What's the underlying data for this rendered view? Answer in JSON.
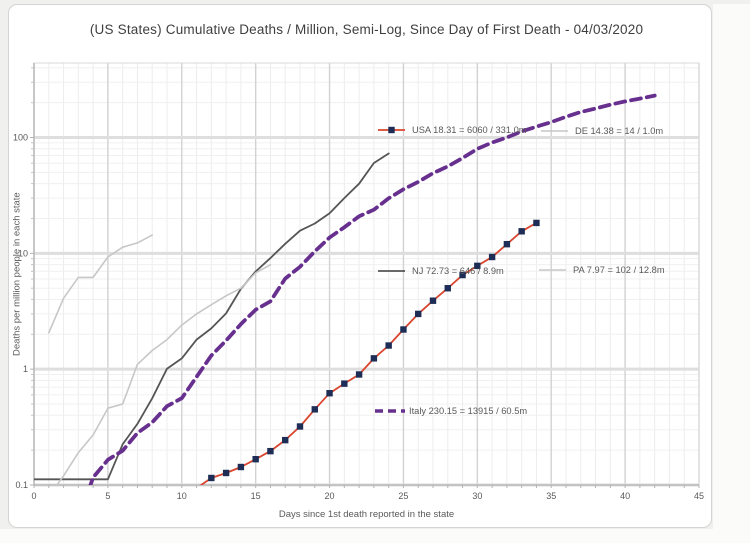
{
  "chart_data": {
    "type": "line",
    "title": "(US States) Cumulative Deaths / Million, Semi-Log, Since Day of First Death - 04/03/2020",
    "xlabel": "Days since 1st death reported in the state",
    "ylabel": "Deaths per million people in each state",
    "grid": true,
    "legend_position": "inline-callouts",
    "x_axis": {
      "min": 0,
      "max": 45,
      "minor_step": 1,
      "ticks": [
        0,
        5,
        10,
        15,
        20,
        25,
        30,
        35,
        40,
        45
      ]
    },
    "y_axis": {
      "scale": "log",
      "min": 0.1,
      "max": 440,
      "tick_values": [
        0.1,
        1,
        10,
        100
      ],
      "tick_labels": [
        "0.1",
        "1",
        "10",
        "100"
      ]
    },
    "series": [
      {
        "name": "USA",
        "label": "USA 18.31 = 6060 / 331.0m",
        "color": "#d9452e",
        "style": "solid",
        "width": 1.8,
        "marker": {
          "shape": "square",
          "color": "#1d2d56",
          "size": 6.4
        },
        "label_anchor": {
          "x": 369,
          "y": 125
        },
        "points": [
          [
            11,
            0.094
          ],
          [
            12,
            0.115
          ],
          [
            13,
            0.127
          ],
          [
            14,
            0.143
          ],
          [
            15,
            0.167
          ],
          [
            16,
            0.196
          ],
          [
            17,
            0.244
          ],
          [
            18,
            0.32
          ],
          [
            19,
            0.45
          ],
          [
            20,
            0.62
          ],
          [
            21,
            0.75
          ],
          [
            22,
            0.9
          ],
          [
            23,
            1.24
          ],
          [
            24,
            1.6
          ],
          [
            25,
            2.2
          ],
          [
            26,
            3.0
          ],
          [
            27,
            3.9
          ],
          [
            28,
            5.0
          ],
          [
            29,
            6.5
          ],
          [
            30,
            7.8
          ],
          [
            31,
            9.3
          ],
          [
            32,
            12.0
          ],
          [
            33,
            15.5
          ],
          [
            34,
            18.31
          ]
        ]
      },
      {
        "name": "DE",
        "label": "DE 14.38 = 14 / 1.0m",
        "color": "#c7c7c7",
        "style": "solid",
        "width": 1.6,
        "label_anchor": {
          "x": 532,
          "y": 126
        },
        "points": [
          [
            1,
            2.06
          ],
          [
            2,
            4.1
          ],
          [
            3,
            6.2
          ],
          [
            4,
            6.2
          ],
          [
            5,
            9.3
          ],
          [
            6,
            11.3
          ],
          [
            7,
            12.3
          ],
          [
            8,
            14.38
          ]
        ]
      },
      {
        "name": "NJ",
        "label": "NJ 72.73 = 646 / 8.9m",
        "color": "#555555",
        "style": "solid",
        "width": 1.8,
        "label_anchor": {
          "x": 369,
          "y": 266
        },
        "points": [
          [
            0,
            0.112
          ],
          [
            5,
            0.112
          ],
          [
            6,
            0.225
          ],
          [
            7,
            0.337
          ],
          [
            8,
            0.56
          ],
          [
            9,
            1.01
          ],
          [
            10,
            1.24
          ],
          [
            11,
            1.8
          ],
          [
            12,
            2.25
          ],
          [
            13,
            3.03
          ],
          [
            14,
            4.94
          ],
          [
            15,
            6.97
          ],
          [
            16,
            9.1
          ],
          [
            17,
            12.1
          ],
          [
            18,
            15.7
          ],
          [
            19,
            18.1
          ],
          [
            20,
            22.2
          ],
          [
            21,
            30.0
          ],
          [
            22,
            39.9
          ],
          [
            23,
            60.3
          ],
          [
            24,
            72.73
          ]
        ]
      },
      {
        "name": "PA",
        "label": "PA 7.97 = 102 / 12.8m",
        "color": "#c7c7c7",
        "style": "solid",
        "width": 1.6,
        "label_anchor": {
          "x": 530,
          "y": 265
        },
        "points": [
          [
            1,
            0.08
          ],
          [
            2,
            0.12
          ],
          [
            3,
            0.19
          ],
          [
            4,
            0.27
          ],
          [
            5,
            0.46
          ],
          [
            6,
            0.5
          ],
          [
            7,
            1.1
          ],
          [
            8,
            1.45
          ],
          [
            9,
            1.8
          ],
          [
            10,
            2.4
          ],
          [
            11,
            3.0
          ],
          [
            12,
            3.6
          ],
          [
            13,
            4.3
          ],
          [
            14,
            5.0
          ],
          [
            15,
            6.8
          ],
          [
            16,
            7.97
          ]
        ]
      },
      {
        "name": "Italy",
        "label": "Italy 230.15 = 13915 / 60.5m",
        "color": "#67308f",
        "style": "dashed",
        "width": 3.8,
        "label_anchor": {
          "x": 366,
          "y": 406
        },
        "points": [
          [
            3,
            0.05
          ],
          [
            4,
            0.116
          ],
          [
            5,
            0.165
          ],
          [
            6,
            0.198
          ],
          [
            7,
            0.281
          ],
          [
            8,
            0.347
          ],
          [
            9,
            0.479
          ],
          [
            10,
            0.562
          ],
          [
            11,
            0.86
          ],
          [
            12,
            1.31
          ],
          [
            13,
            1.77
          ],
          [
            14,
            2.45
          ],
          [
            15,
            3.26
          ],
          [
            16,
            3.85
          ],
          [
            17,
            6.05
          ],
          [
            18,
            7.65
          ],
          [
            19,
            10.4
          ],
          [
            20,
            13.7
          ],
          [
            21,
            16.8
          ],
          [
            22,
            20.9
          ],
          [
            23,
            23.8
          ],
          [
            24,
            29.9
          ],
          [
            25,
            35.7
          ],
          [
            26,
            41.4
          ],
          [
            27,
            49.2
          ],
          [
            28,
            56.3
          ],
          [
            29,
            66.6
          ],
          [
            30,
            79.8
          ],
          [
            31,
            90.5
          ],
          [
            32,
            100
          ],
          [
            33,
            113
          ],
          [
            34,
            124
          ],
          [
            35,
            136
          ],
          [
            36,
            151
          ],
          [
            37,
            166
          ],
          [
            38,
            178
          ],
          [
            39,
            192
          ],
          [
            40,
            205
          ],
          [
            41,
            217
          ],
          [
            42,
            230.15
          ]
        ]
      }
    ]
  }
}
